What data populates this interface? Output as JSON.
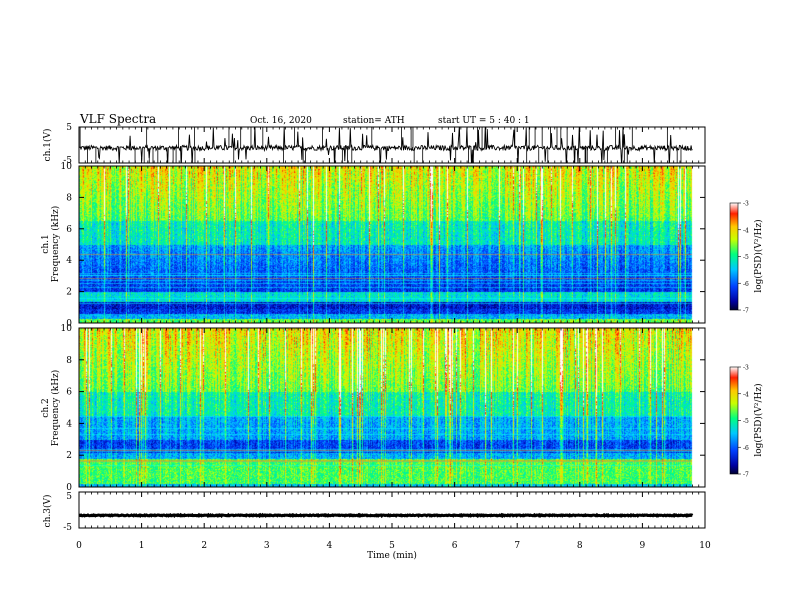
{
  "header": {
    "title": "VLF Spectra",
    "date": "Oct. 16, 2020",
    "station": "station= ATH",
    "start": "start  UT =   5  : 40 : 1"
  },
  "chart_data": [
    {
      "type": "line",
      "panel": "ch1-waveform",
      "ylabel": "ch.1(V)",
      "yticks": [
        "5",
        "-5"
      ],
      "ylim": [
        -5,
        5
      ],
      "x_range_min": [
        0,
        9.8
      ],
      "baseline_v": -0.8,
      "color": "#000000"
    },
    {
      "type": "heatmap",
      "panel": "ch1-spectrogram",
      "ylabel_channel": "ch.1",
      "ylabel": "Frequency  (kHz)",
      "yticks": [
        "0",
        "2",
        "4",
        "6",
        "8",
        "10"
      ],
      "ylim_khz": [
        0,
        10
      ],
      "x_range_min": [
        0,
        9.8
      ],
      "colorbar": {
        "label": "log(PSD)(V²/Hz)",
        "ticks": [
          "-3",
          "-4",
          "-5",
          "-6",
          "-7"
        ],
        "range": [
          -7,
          -3
        ]
      }
    },
    {
      "type": "heatmap",
      "panel": "ch2-spectrogram",
      "ylabel_channel": "ch.2",
      "ylabel": "Frequency  (kHz)",
      "yticks": [
        "0",
        "2",
        "4",
        "6",
        "8",
        "10"
      ],
      "ylim_khz": [
        0,
        10
      ],
      "x_range_min": [
        0,
        9.8
      ],
      "colorbar": {
        "label": "log(PSD)(V²/Hz)",
        "ticks": [
          "-3",
          "-4",
          "-5",
          "-6",
          "-7"
        ],
        "range": [
          -7,
          -3
        ]
      }
    },
    {
      "type": "line",
      "panel": "ch3-waveform",
      "ylabel": "ch.3(V)",
      "yticks": [
        "5",
        "-5"
      ],
      "ylim": [
        -5,
        5
      ],
      "x_range_min": [
        0,
        9.8
      ],
      "baseline_v": -1.5,
      "color": "#000000"
    }
  ],
  "xaxis": {
    "label": "Time  (min)",
    "ticks": [
      "0",
      "1",
      "2",
      "3",
      "4",
      "5",
      "6",
      "7",
      "8",
      "9",
      "10"
    ],
    "range": [
      0,
      10
    ]
  }
}
